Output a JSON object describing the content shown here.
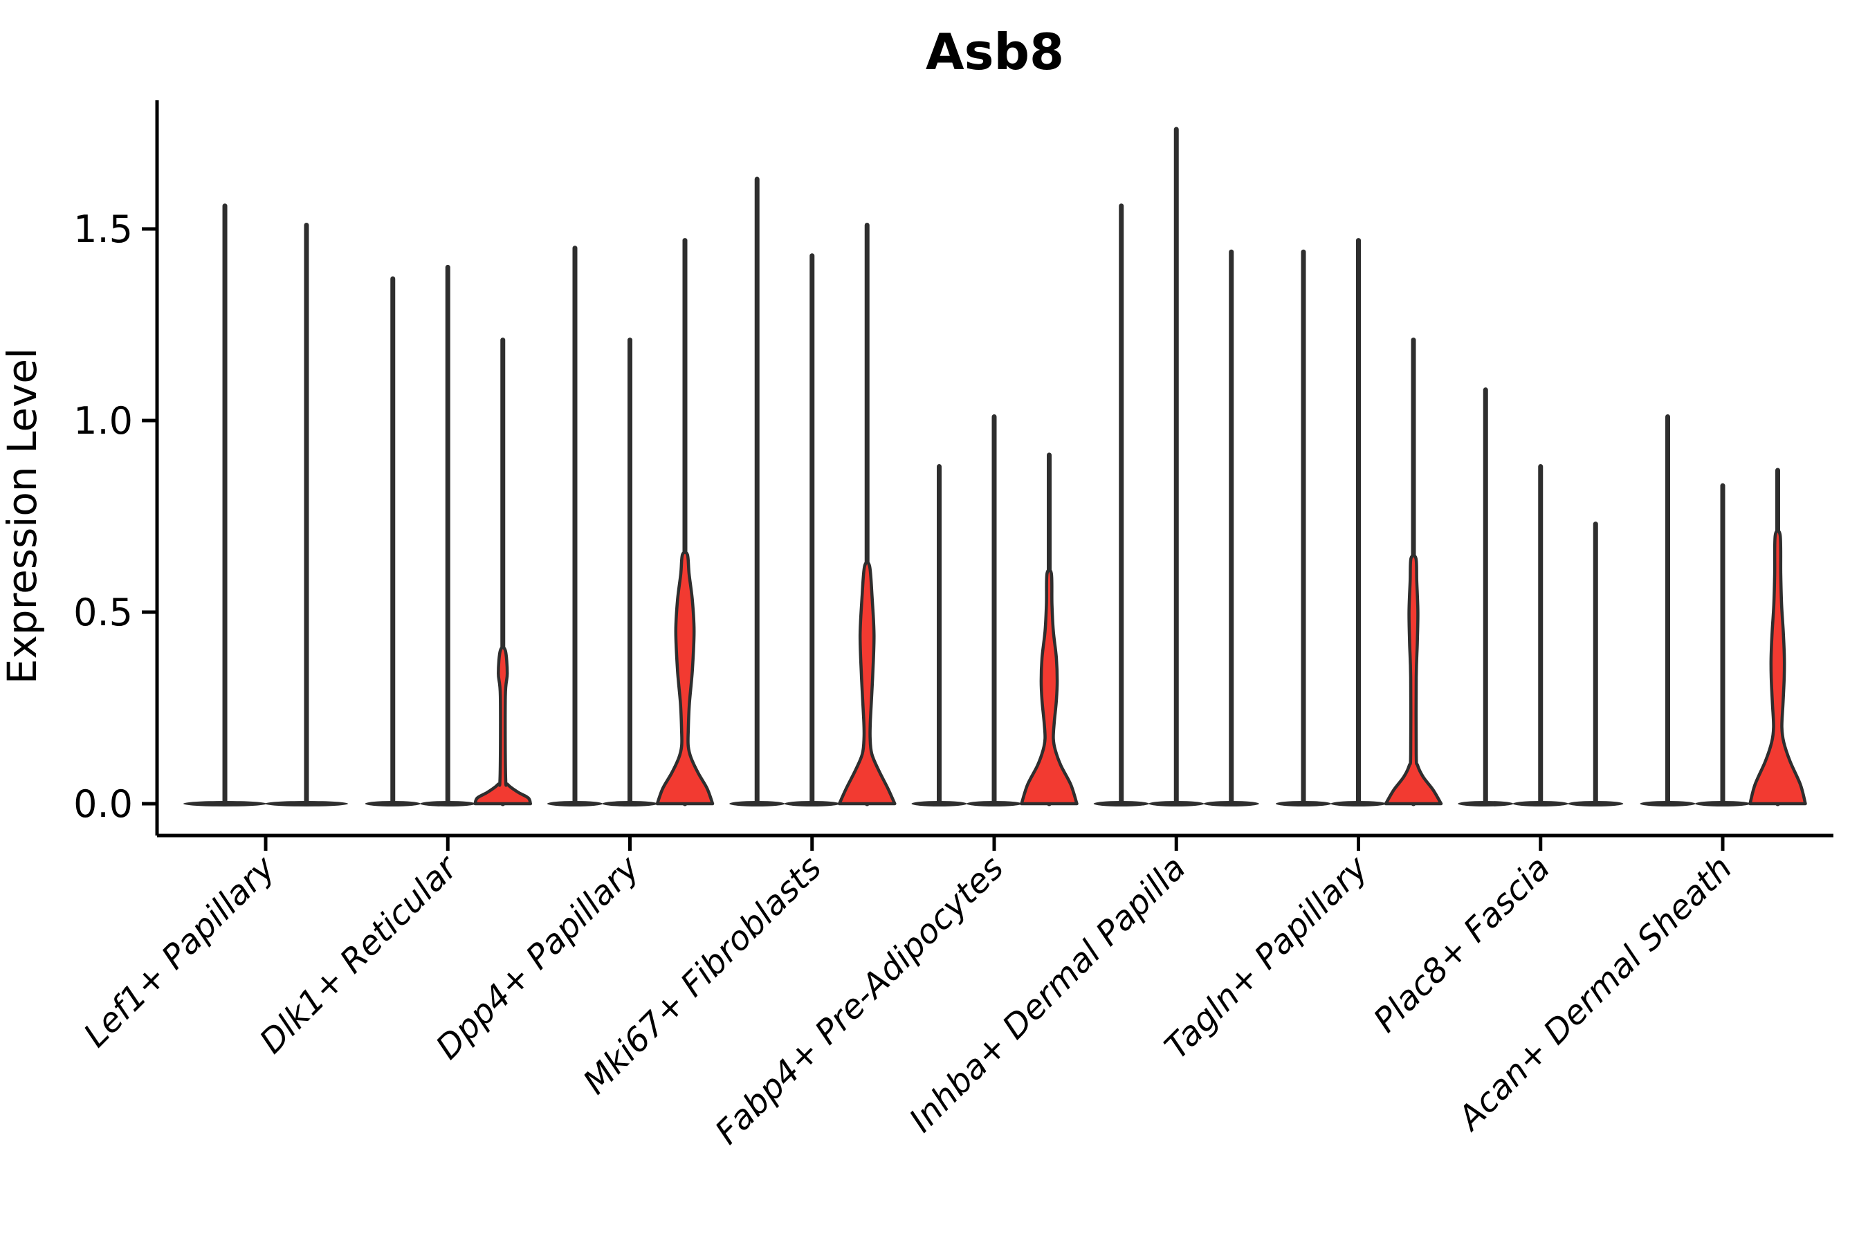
{
  "page": {
    "title": "Asb8"
  },
  "chart_data": {
    "type": "violin",
    "title": "Asb8",
    "xlabel": "",
    "ylabel": "Expression Level",
    "yticks": [
      0.0,
      0.5,
      1.0,
      1.5
    ],
    "ytick_labels": [
      "0.0",
      "0.5",
      "1.0",
      "1.5"
    ],
    "ylim": [
      -0.083,
      1.835
    ],
    "grid": false,
    "legend": null,
    "colors": {
      "violin_fill": "#f23a31",
      "violin_outline": "#2e2e2e",
      "axis": "#000000",
      "text": "#000000",
      "background": "#ffffff"
    },
    "categories": [
      {
        "label": "Lef1+ Papillary",
        "violins": [
          {
            "offset": -0.224,
            "halfwidth": 0.228,
            "max": 1.56,
            "filled": false
          },
          {
            "offset": 0.224,
            "halfwidth": 0.228,
            "max": 1.51,
            "filled": false
          }
        ]
      },
      {
        "label": "Dlk1+ Reticular",
        "violins": [
          {
            "offset": -0.302,
            "halfwidth": 0.152,
            "max": 1.37,
            "filled": false
          },
          {
            "offset": 0.0,
            "halfwidth": 0.152,
            "max": 1.4,
            "filled": false
          },
          {
            "offset": 0.302,
            "halfwidth": 0.152,
            "max": 1.21,
            "filled": true,
            "profile": [
              [
                0,
                1
              ],
              [
                0.015,
                0.92
              ],
              [
                0.03,
                0.55
              ],
              [
                0.05,
                0.18
              ],
              [
                0.07,
                0.1
              ],
              [
                0.28,
                0.09
              ],
              [
                0.34,
                0.16
              ],
              [
                0.4,
                0.09
              ]
            ]
          }
        ]
      },
      {
        "label": "Dpp4+ Papillary",
        "violins": [
          {
            "offset": -0.302,
            "halfwidth": 0.152,
            "max": 1.45,
            "filled": false
          },
          {
            "offset": 0.0,
            "halfwidth": 0.152,
            "max": 1.21,
            "filled": false
          },
          {
            "offset": 0.302,
            "halfwidth": 0.152,
            "max": 1.47,
            "filled": true,
            "profile": [
              [
                0,
                1
              ],
              [
                0.04,
                0.8
              ],
              [
                0.08,
                0.48
              ],
              [
                0.12,
                0.22
              ],
              [
                0.15,
                0.12
              ],
              [
                0.19,
                0.12
              ],
              [
                0.26,
                0.16
              ],
              [
                0.35,
                0.27
              ],
              [
                0.45,
                0.33
              ],
              [
                0.53,
                0.27
              ],
              [
                0.6,
                0.15
              ],
              [
                0.65,
                0.09
              ]
            ]
          }
        ]
      },
      {
        "label": "Mki67+ Fibroblasts",
        "violins": [
          {
            "offset": -0.302,
            "halfwidth": 0.152,
            "max": 1.63,
            "filled": false
          },
          {
            "offset": 0.0,
            "halfwidth": 0.152,
            "max": 1.43,
            "filled": false
          },
          {
            "offset": 0.302,
            "halfwidth": 0.152,
            "max": 1.51,
            "filled": true,
            "profile": [
              [
                0,
                1
              ],
              [
                0.04,
                0.75
              ],
              [
                0.09,
                0.4
              ],
              [
                0.13,
                0.17
              ],
              [
                0.17,
                0.11
              ],
              [
                0.22,
                0.12
              ],
              [
                0.33,
                0.2
              ],
              [
                0.44,
                0.25
              ],
              [
                0.54,
                0.18
              ],
              [
                0.62,
                0.09
              ]
            ]
          }
        ]
      },
      {
        "label": "Fabp4+ Pre-Adipocytes",
        "violins": [
          {
            "offset": -0.302,
            "halfwidth": 0.152,
            "max": 0.88,
            "filled": false
          },
          {
            "offset": 0.0,
            "halfwidth": 0.152,
            "max": 1.01,
            "filled": false
          },
          {
            "offset": 0.302,
            "halfwidth": 0.152,
            "max": 0.91,
            "filled": true,
            "profile": [
              [
                0,
                1
              ],
              [
                0.05,
                0.78
              ],
              [
                0.1,
                0.42
              ],
              [
                0.14,
                0.22
              ],
              [
                0.17,
                0.15
              ],
              [
                0.21,
                0.18
              ],
              [
                0.27,
                0.26
              ],
              [
                0.32,
                0.29
              ],
              [
                0.38,
                0.26
              ],
              [
                0.45,
                0.15
              ],
              [
                0.52,
                0.1
              ],
              [
                0.6,
                0.08
              ]
            ]
          }
        ]
      },
      {
        "label": "Inhba+ Dermal Papilla",
        "violins": [
          {
            "offset": -0.302,
            "halfwidth": 0.152,
            "max": 1.56,
            "filled": false
          },
          {
            "offset": 0.0,
            "halfwidth": 0.152,
            "max": 1.76,
            "filled": false
          },
          {
            "offset": 0.302,
            "halfwidth": 0.152,
            "max": 1.44,
            "filled": false
          }
        ]
      },
      {
        "label": "Tagln+ Papillary",
        "violins": [
          {
            "offset": -0.302,
            "halfwidth": 0.152,
            "max": 1.44,
            "filled": false
          },
          {
            "offset": 0.0,
            "halfwidth": 0.152,
            "max": 1.47,
            "filled": false
          },
          {
            "offset": 0.302,
            "halfwidth": 0.152,
            "max": 1.21,
            "filled": true,
            "profile": [
              [
                0,
                1
              ],
              [
                0.035,
                0.72
              ],
              [
                0.07,
                0.35
              ],
              [
                0.1,
                0.15
              ],
              [
                0.13,
                0.1
              ],
              [
                0.33,
                0.1
              ],
              [
                0.42,
                0.14
              ],
              [
                0.5,
                0.16
              ],
              [
                0.58,
                0.12
              ],
              [
                0.64,
                0.09
              ]
            ]
          }
        ]
      },
      {
        "label": "Plac8+ Fascia",
        "violins": [
          {
            "offset": -0.302,
            "halfwidth": 0.152,
            "max": 1.08,
            "filled": false
          },
          {
            "offset": 0.0,
            "halfwidth": 0.152,
            "max": 0.88,
            "filled": false
          },
          {
            "offset": 0.302,
            "halfwidth": 0.152,
            "max": 0.73,
            "filled": false
          }
        ]
      },
      {
        "label": "Acan+ Dermal Sheath",
        "violins": [
          {
            "offset": -0.302,
            "halfwidth": 0.152,
            "max": 1.01,
            "filled": false
          },
          {
            "offset": 0.0,
            "halfwidth": 0.152,
            "max": 0.83,
            "filled": false
          },
          {
            "offset": 0.302,
            "halfwidth": 0.152,
            "max": 0.87,
            "filled": true,
            "profile": [
              [
                0,
                1
              ],
              [
                0.05,
                0.82
              ],
              [
                0.11,
                0.45
              ],
              [
                0.16,
                0.22
              ],
              [
                0.2,
                0.15
              ],
              [
                0.26,
                0.19
              ],
              [
                0.33,
                0.235
              ],
              [
                0.38,
                0.24
              ],
              [
                0.45,
                0.2
              ],
              [
                0.52,
                0.14
              ],
              [
                0.6,
                0.11
              ],
              [
                0.7,
                0.09
              ]
            ]
          }
        ]
      }
    ]
  }
}
